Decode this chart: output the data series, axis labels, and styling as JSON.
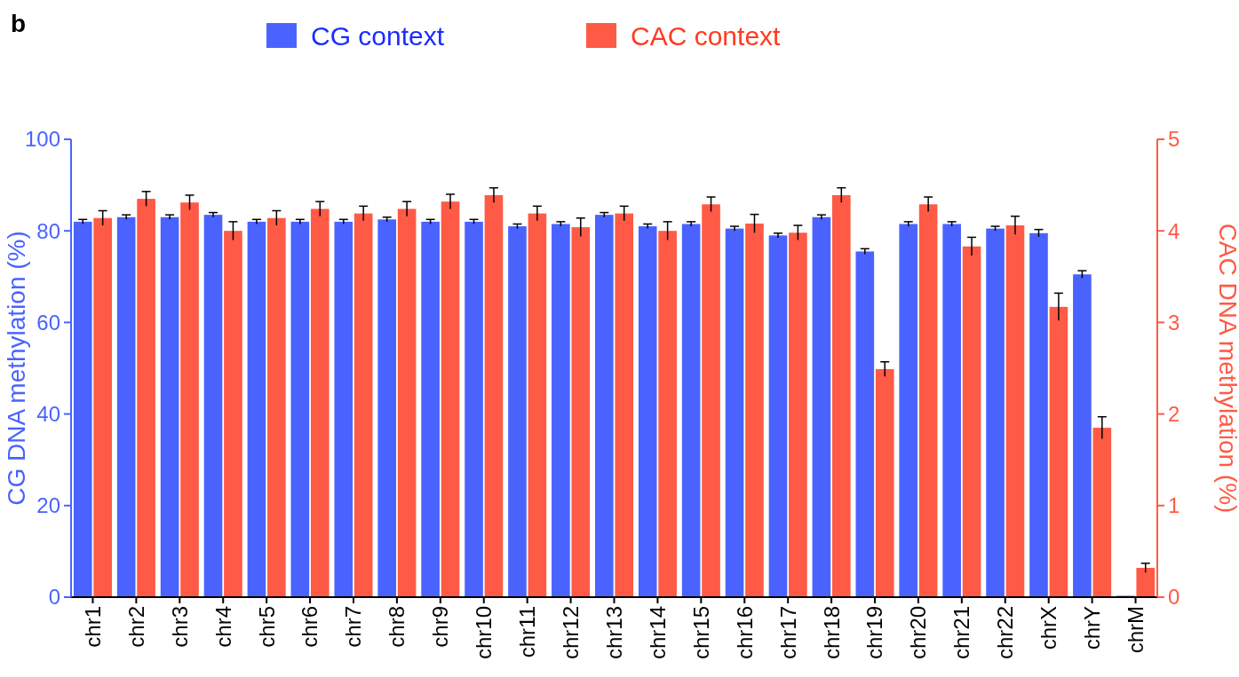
{
  "chart_data": {
    "type": "bar",
    "ylabel": "CG DNA methylation (%)",
    "y2label": "CAC DNA methylation (%)",
    "annotations": [
      "b"
    ],
    "categories": [
      "chr1",
      "chr2",
      "chr3",
      "chr4",
      "chr5",
      "chr6",
      "chr7",
      "chr8",
      "chr9",
      "chr10",
      "chr11",
      "chr12",
      "chr13",
      "chr14",
      "chr15",
      "chr16",
      "chr17",
      "chr18",
      "chr19",
      "chr20",
      "chr21",
      "chr22",
      "chrX",
      "chrY",
      "chrM"
    ],
    "series": [
      {
        "name": "CG context",
        "color": "#4a63ff",
        "values": [
          82,
          83,
          83,
          83.5,
          82,
          82,
          82,
          82.5,
          82,
          82,
          81,
          81.5,
          83.5,
          81,
          81.5,
          80.5,
          79,
          83,
          75.5,
          81.5,
          81.5,
          80.5,
          79.5,
          70.5,
          0.3
        ],
        "errors": [
          0.5,
          0.5,
          0.5,
          0.5,
          0.5,
          0.5,
          0.5,
          0.5,
          0.5,
          0.5,
          0.5,
          0.5,
          0.5,
          0.5,
          0.5,
          0.5,
          0.5,
          0.5,
          0.6,
          0.5,
          0.5,
          0.5,
          0.8,
          0.8,
          null
        ]
      },
      {
        "name": "CAC context",
        "color": "#ff5a45",
        "axis": "y2",
        "values": [
          4.14,
          4.35,
          4.31,
          4.0,
          4.14,
          4.24,
          4.19,
          4.24,
          4.32,
          4.39,
          4.19,
          4.04,
          4.19,
          4.0,
          4.29,
          4.08,
          3.98,
          4.39,
          2.49,
          4.29,
          3.83,
          4.06,
          3.17,
          1.85,
          0.32
        ],
        "errors": [
          0.08,
          0.08,
          0.08,
          0.1,
          0.08,
          0.08,
          0.08,
          0.08,
          0.08,
          0.08,
          0.08,
          0.1,
          0.08,
          0.1,
          0.08,
          0.1,
          0.08,
          0.08,
          0.08,
          0.08,
          0.1,
          0.1,
          0.15,
          0.12,
          0.05
        ]
      }
    ],
    "ylim": [
      0,
      100
    ],
    "yticks": [
      0,
      20,
      40,
      60,
      80,
      100
    ],
    "y2lim": [
      0,
      5
    ],
    "y2ticks": [
      0,
      1,
      2,
      3,
      4,
      5
    ],
    "grid": false,
    "legend": "top"
  }
}
